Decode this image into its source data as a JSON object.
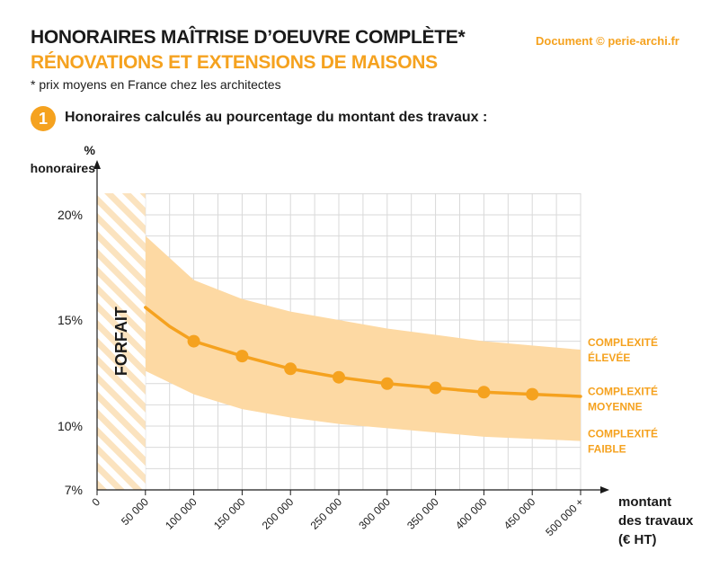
{
  "header": {
    "title_line1": "HONORAIRES MAÎTRISE D’OEUVRE COMPLÈTE*",
    "title_line2": "RÉNOVATIONS ET EXTENSIONS DE MAISONS",
    "subtitle": "* prix moyens en France chez les architectes",
    "credit": "Document © perie-archi.fr"
  },
  "section": {
    "number": "1",
    "title": "Honoraires calculés au pourcentage du montant des travaux :"
  },
  "colors": {
    "accent": "#f5a21f",
    "band": "#fdd9a3",
    "hatch": "#fbe3bf",
    "grid": "#d9d9d9",
    "text": "#1a1a1a"
  },
  "chart_data": {
    "type": "line",
    "ylabel_lines": [
      "%",
      "honoraires"
    ],
    "xlabel_lines": [
      "montant",
      "des travaux",
      "(€ HT)"
    ],
    "x_ticks": [
      {
        "value": 0,
        "label": "0"
      },
      {
        "value": 50000,
        "label": "50 000"
      },
      {
        "value": 100000,
        "label": "100 000"
      },
      {
        "value": 150000,
        "label": "150 000"
      },
      {
        "value": 200000,
        "label": "200 000"
      },
      {
        "value": 250000,
        "label": "250 000"
      },
      {
        "value": 300000,
        "label": "300 000"
      },
      {
        "value": 350000,
        "label": "350 000"
      },
      {
        "value": 400000,
        "label": "400 000"
      },
      {
        "value": 450000,
        "label": "450 000"
      },
      {
        "value": 500000,
        "label": "500 000 +"
      }
    ],
    "y_ticks": [
      {
        "value": 7,
        "label": "7%"
      },
      {
        "value": 10,
        "label": "10%"
      },
      {
        "value": 15,
        "label": "15%"
      },
      {
        "value": 20,
        "label": "20%"
      }
    ],
    "xlim": [
      0,
      500000
    ],
    "ylim": [
      7,
      21
    ],
    "forfait": {
      "label": "FORFAIT",
      "x_range": [
        0,
        50000
      ]
    },
    "band": {
      "upper": [
        {
          "x": 50000,
          "y": 19.0
        },
        {
          "x": 100000,
          "y": 16.9
        },
        {
          "x": 150000,
          "y": 16.0
        },
        {
          "x": 200000,
          "y": 15.4
        },
        {
          "x": 250000,
          "y": 15.0
        },
        {
          "x": 300000,
          "y": 14.6
        },
        {
          "x": 350000,
          "y": 14.3
        },
        {
          "x": 400000,
          "y": 14.0
        },
        {
          "x": 450000,
          "y": 13.8
        },
        {
          "x": 500000,
          "y": 13.6
        }
      ],
      "lower": [
        {
          "x": 50000,
          "y": 12.6
        },
        {
          "x": 100000,
          "y": 11.5
        },
        {
          "x": 150000,
          "y": 10.8
        },
        {
          "x": 200000,
          "y": 10.4
        },
        {
          "x": 250000,
          "y": 10.1
        },
        {
          "x": 300000,
          "y": 9.9
        },
        {
          "x": 350000,
          "y": 9.7
        },
        {
          "x": 400000,
          "y": 9.5
        },
        {
          "x": 450000,
          "y": 9.4
        },
        {
          "x": 500000,
          "y": 9.3
        }
      ]
    },
    "series": [
      {
        "name": "COMPLEXITÉ MOYENNE",
        "line": [
          {
            "x": 50000,
            "y": 15.6
          },
          {
            "x": 75000,
            "y": 14.7
          },
          {
            "x": 100000,
            "y": 14.0
          },
          {
            "x": 150000,
            "y": 13.3
          },
          {
            "x": 200000,
            "y": 12.7
          },
          {
            "x": 250000,
            "y": 12.3
          },
          {
            "x": 300000,
            "y": 12.0
          },
          {
            "x": 350000,
            "y": 11.8
          },
          {
            "x": 400000,
            "y": 11.6
          },
          {
            "x": 450000,
            "y": 11.5
          },
          {
            "x": 500000,
            "y": 11.4
          }
        ],
        "points": [
          {
            "x": 100000,
            "y": 14.0
          },
          {
            "x": 150000,
            "y": 13.3
          },
          {
            "x": 200000,
            "y": 12.7
          },
          {
            "x": 250000,
            "y": 12.3
          },
          {
            "x": 300000,
            "y": 12.0
          },
          {
            "x": 350000,
            "y": 11.8
          },
          {
            "x": 400000,
            "y": 11.6
          },
          {
            "x": 450000,
            "y": 11.5
          }
        ]
      }
    ],
    "annotations": [
      {
        "lines": [
          "COMPLEXITÉ",
          "ÉLEVÉE"
        ],
        "y": 13.6
      },
      {
        "lines": [
          "COMPLEXITÉ",
          "MOYENNE"
        ],
        "y": 11.3
      },
      {
        "lines": [
          "COMPLEXITÉ",
          "FAIBLE"
        ],
        "y": 9.3
      }
    ],
    "grid": true
  }
}
